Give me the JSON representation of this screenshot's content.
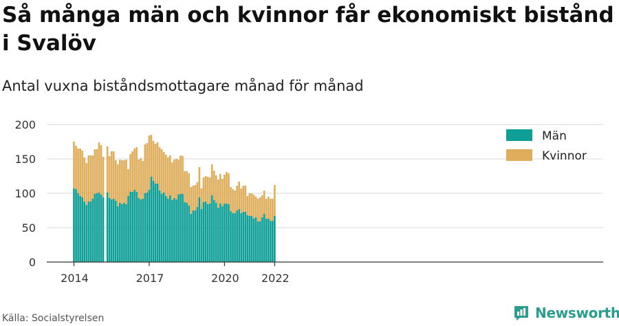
{
  "title": "Så många män och kvinnor får ekonomiskt bistånd i Svalöv",
  "subtitle": "Antal vuxna biståndsmottagare månad för månad",
  "source": "Källa: Socialstyrelsen",
  "brand": "Newsworthy",
  "icons": {
    "brand": "newsworthy-logo-icon"
  },
  "colors": {
    "man": "#0f9f96",
    "kvinnor": "#dfae5c",
    "grid": "#d9d9d9",
    "axis": "#333333",
    "brand": "#2a9d8f"
  },
  "chart_data": {
    "type": "bar",
    "stacked": true,
    "x_start": "2014-01",
    "x_ticks": [
      "2014",
      "2017",
      "2020",
      "2022"
    ],
    "y_ticks": [
      "0",
      "50",
      "100",
      "150",
      "200"
    ],
    "ylim": [
      0,
      200
    ],
    "grid": true,
    "legend_position": "top-right",
    "series": [
      {
        "name": "Män",
        "values": [
          107,
          106,
          100,
          96,
          94,
          88,
          83,
          88,
          88,
          92,
          99,
          100,
          101,
          98,
          94,
          null,
          101,
          93,
          91,
          92,
          89,
          81,
          86,
          84,
          86,
          84,
          96,
          102,
          102,
          105,
          102,
          93,
          91,
          92,
          100,
          101,
          105,
          124,
          118,
          114,
          114,
          104,
          99,
          101,
          96,
          92,
          97,
          90,
          93,
          91,
          98,
          99,
          99,
          87,
          86,
          82,
          70,
          75,
          75,
          80,
          94,
          77,
          87,
          88,
          84,
          85,
          97,
          90,
          86,
          79,
          85,
          81,
          85,
          85,
          84,
          74,
          71,
          71,
          75,
          77,
          71,
          73,
          73,
          68,
          67,
          67,
          63,
          65,
          59,
          59,
          65,
          70,
          63,
          63,
          60,
          60,
          67
        ],
        "labels": null
      },
      {
        "name": "Kvinnor",
        "values": [
          68,
          63,
          65,
          69,
          68,
          64,
          61,
          67,
          67,
          63,
          65,
          64,
          73,
          72,
          59,
          null,
          67,
          61,
          70,
          69,
          59,
          61,
          63,
          64,
          62,
          65,
          39,
          55,
          59,
          60,
          65,
          56,
          60,
          55,
          71,
          72,
          79,
          61,
          58,
          58,
          60,
          63,
          65,
          59,
          60,
          60,
          58,
          55,
          56,
          59,
          51,
          56,
          55,
          45,
          46,
          47,
          39,
          36,
          37,
          36,
          44,
          30,
          36,
          37,
          40,
          38,
          45,
          43,
          40,
          41,
          43,
          40,
          42,
          46,
          45,
          35,
          35,
          33,
          36,
          40,
          36,
          38,
          38,
          28,
          33,
          33,
          35,
          30,
          33,
          35,
          32,
          34,
          29,
          32,
          32,
          32,
          45
        ],
        "labels": null
      }
    ]
  }
}
